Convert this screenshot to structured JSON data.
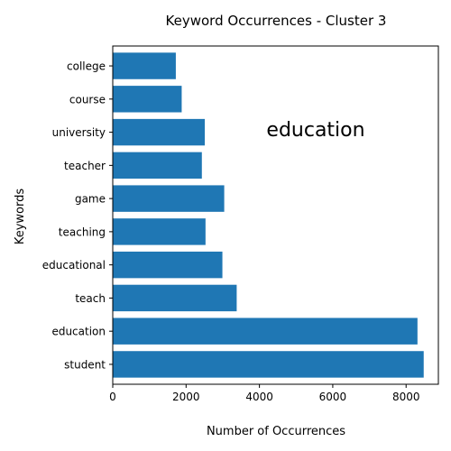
{
  "chart_data": {
    "type": "bar",
    "orientation": "horizontal",
    "title": "Keyword Occurrences - Cluster 3",
    "xlabel": "Number of Occurrences",
    "ylabel": "Keywords",
    "categories": [
      "student",
      "education",
      "teach",
      "educational",
      "teaching",
      "game",
      "teacher",
      "university",
      "course",
      "college"
    ],
    "values": [
      8480,
      8310,
      3380,
      2990,
      2530,
      3040,
      2430,
      2510,
      1880,
      1720
    ],
    "xlim": [
      0,
      8880
    ],
    "xticks": [
      0,
      2000,
      4000,
      6000,
      8000
    ],
    "xtick_labels": [
      "0",
      "2000",
      "4000",
      "6000",
      "8000"
    ],
    "grid": false,
    "bar_color": "#1f77b4",
    "annotation": {
      "text": "education",
      "color": "#ff2200"
    }
  }
}
